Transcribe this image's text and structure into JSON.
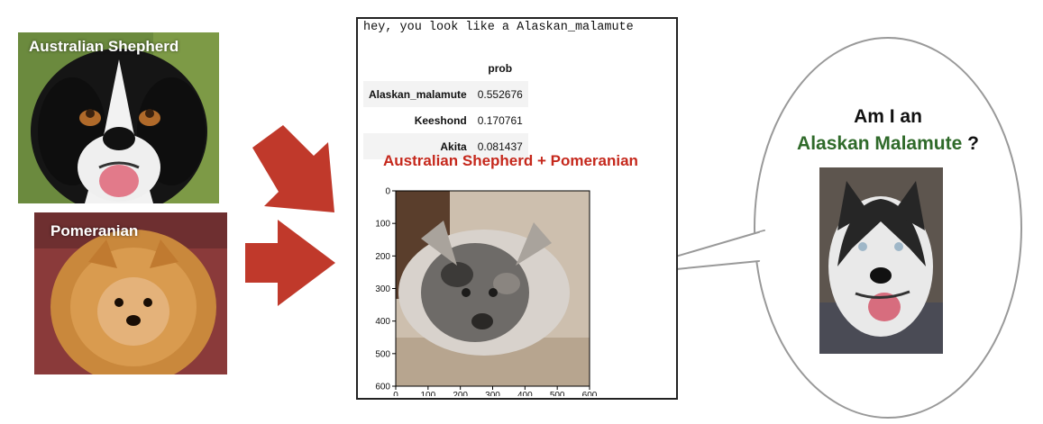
{
  "inputs": [
    {
      "label": "Australian Shepherd"
    },
    {
      "label": "Pomeranian"
    }
  ],
  "notebook": {
    "prediction_prefix": "hey, you look like a ",
    "prediction_breed": "Alaskan_malamute",
    "table": {
      "header": "prob",
      "rows": [
        {
          "name": "Alaskan_malamute",
          "prob": "0.552676"
        },
        {
          "name": "Keeshond",
          "prob": "0.170761"
        },
        {
          "name": "Akita",
          "prob": "0.081437"
        }
      ]
    },
    "mix_title": "Australian Shepherd + Pomeranian",
    "x_ticks": [
      "0",
      "100",
      "200",
      "300",
      "400",
      "500",
      "600"
    ],
    "y_ticks": [
      "0",
      "100",
      "200",
      "300",
      "400",
      "500",
      "600"
    ]
  },
  "bubble": {
    "question_line1": "Am I an",
    "breed": "Alaskan Malamute",
    "question_mark": "?"
  },
  "colors": {
    "arrow": "#c0392b",
    "mix_title": "#c5281c",
    "breed_text": "#2f6a2a"
  }
}
